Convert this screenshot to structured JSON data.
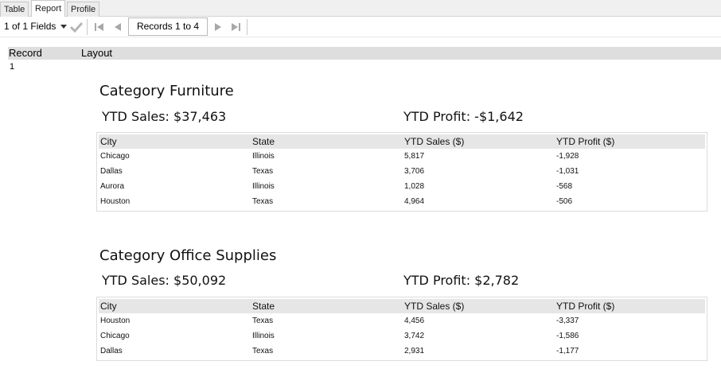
{
  "tabs": [
    {
      "label": "Table"
    },
    {
      "label": "Report"
    },
    {
      "label": "Profile"
    }
  ],
  "toolbar": {
    "fields_label": "1 of 1 Fields",
    "records_label": "Records 1 to 4"
  },
  "grid": {
    "record_header": "Record",
    "layout_header": "Layout",
    "record_number": "1"
  },
  "sections": [
    {
      "title": "Category Furniture",
      "ytd_sales": "YTD Sales: $37,463",
      "ytd_profit": "YTD Profit: -$1,642",
      "columns": [
        "City",
        "State",
        "YTD Sales ($)",
        "YTD Profit ($)"
      ],
      "rows": [
        [
          "Chicago",
          "Illinois",
          "5,817",
          "-1,928"
        ],
        [
          "Dallas",
          "Texas",
          "3,706",
          "-1,031"
        ],
        [
          "Aurora",
          "Illinois",
          "1,028",
          "-568"
        ],
        [
          "Houston",
          "Texas",
          "4,964",
          "-506"
        ]
      ]
    },
    {
      "title": "Category Office Supplies",
      "ytd_sales": "YTD Sales: $50,092",
      "ytd_profit": "YTD Profit: $2,782",
      "columns": [
        "City",
        "State",
        "YTD Sales ($)",
        "YTD Profit ($)"
      ],
      "rows": [
        [
          "Houston",
          "Texas",
          "4,456",
          "-3,337"
        ],
        [
          "Chicago",
          "Illinois",
          "3,742",
          "-1,586"
        ],
        [
          "Dallas",
          "Texas",
          "2,931",
          "-1,177"
        ]
      ]
    }
  ],
  "icons": {
    "apply": "check-icon",
    "first": "first-record-icon",
    "prev": "previous-record-icon",
    "next": "next-record-icon",
    "last": "last-record-icon",
    "dropdown": "chevron-down-icon"
  }
}
